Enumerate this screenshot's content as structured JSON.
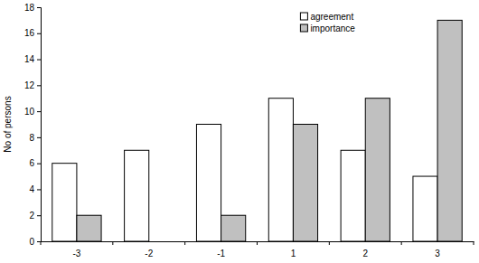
{
  "chart_data": {
    "type": "bar",
    "y_label": "No of persons",
    "categories": [
      "-3",
      "-2",
      "-1",
      "1",
      "2",
      "3"
    ],
    "series": [
      {
        "name": "agreement",
        "color": "#ffffff",
        "values": [
          6,
          7,
          9,
          11,
          7,
          5
        ]
      },
      {
        "name": "importance",
        "color": "#c0c0c0",
        "values": [
          2,
          0,
          2,
          9,
          11,
          17
        ]
      }
    ],
    "ylim": [
      0,
      18
    ],
    "yticks": [
      0,
      2,
      4,
      6,
      8,
      10,
      12,
      14,
      16,
      18
    ],
    "grid": false,
    "legend": "top-right"
  }
}
